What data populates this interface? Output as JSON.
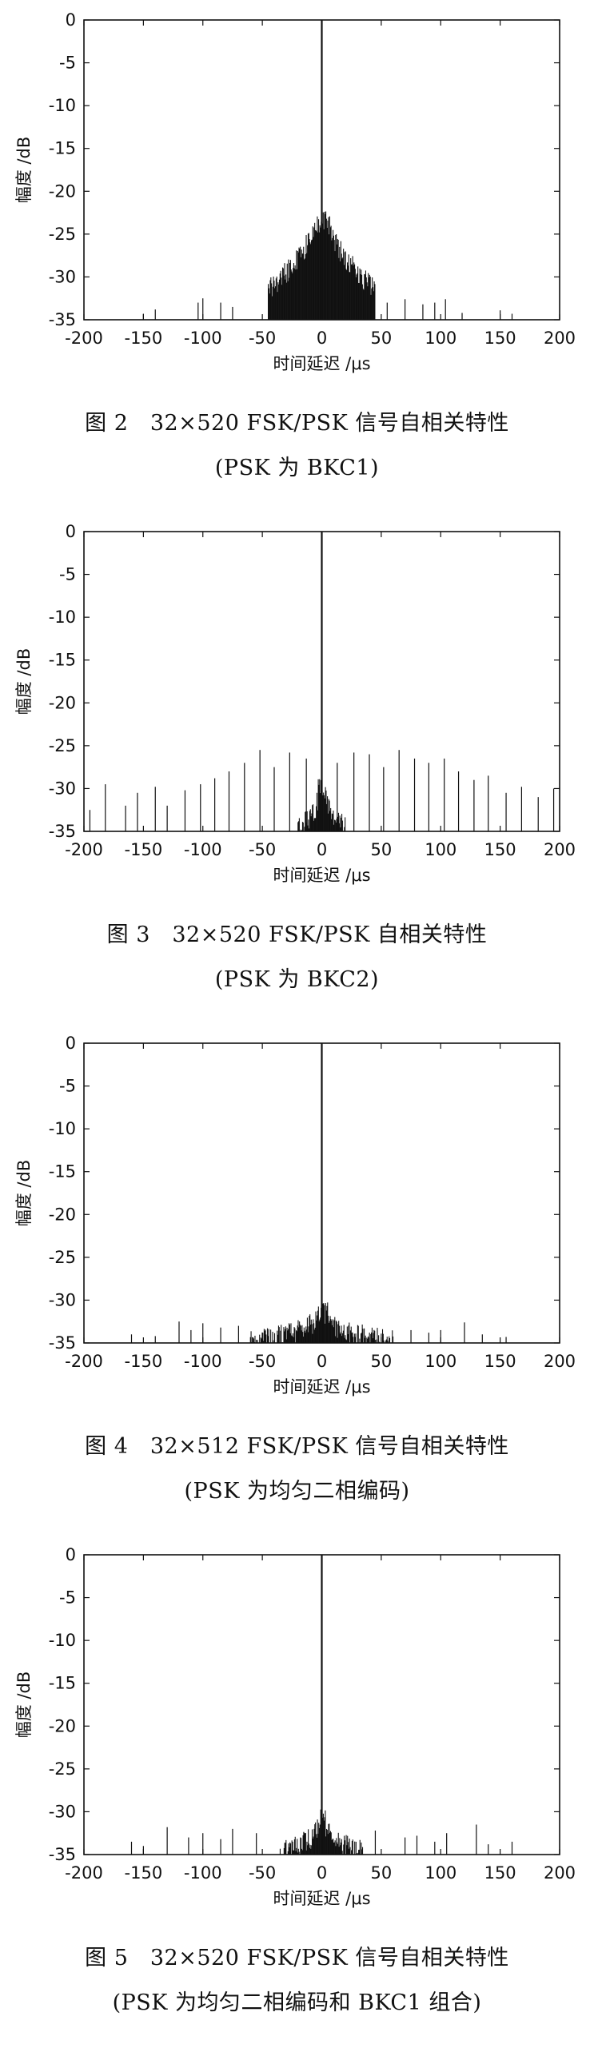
{
  "colors": {
    "ink": "#111111",
    "background": "#ffffff"
  },
  "chart_data": [
    {
      "type": "bar",
      "title": "",
      "xlabel": "时间延迟 /μs",
      "ylabel": "幅度 /dB",
      "xlim": [
        -200,
        200
      ],
      "ylim": [
        -35,
        0
      ],
      "xticks": [
        "-200",
        "-150",
        "-100",
        "-50",
        "0",
        "50",
        "100",
        "150",
        "200"
      ],
      "yticks": [
        "0",
        "-5",
        "-10",
        "-15",
        "-20",
        "-25",
        "-30",
        "-35"
      ],
      "grid": false,
      "caption_line1": "图 2　32×520 FSK/PSK 信号自相关特性",
      "caption_line2": "(PSK 为 BKC1)",
      "peak": {
        "x": 0,
        "y": 0
      },
      "profile": "mound",
      "envelope": {
        "center_level": -23,
        "inner_halfwidth": 6,
        "halfwidth": 45,
        "edge_level": -31
      },
      "sidelobes": [
        {
          "x": -150,
          "y": -34.3
        },
        {
          "x": -140,
          "y": -33.8
        },
        {
          "x": -104,
          "y": -33.0
        },
        {
          "x": -100,
          "y": -32.5
        },
        {
          "x": -85,
          "y": -33.0
        },
        {
          "x": -75,
          "y": -33.5
        },
        {
          "x": 55,
          "y": -33.0
        },
        {
          "x": 70,
          "y": -32.6
        },
        {
          "x": 85,
          "y": -33.2
        },
        {
          "x": 95,
          "y": -33.0
        },
        {
          "x": 104,
          "y": -32.6
        },
        {
          "x": 118,
          "y": -34.2
        },
        {
          "x": 150,
          "y": -33.9
        },
        {
          "x": 160,
          "y": -34.3
        }
      ]
    },
    {
      "type": "bar",
      "title": "",
      "xlabel": "时间延迟 /μs",
      "ylabel": "幅度 /dB",
      "xlim": [
        -200,
        200
      ],
      "ylim": [
        -35,
        0
      ],
      "xticks": [
        "-200",
        "-150",
        "-100",
        "-50",
        "0",
        "50",
        "100",
        "150",
        "200"
      ],
      "yticks": [
        "0",
        "-5",
        "-10",
        "-15",
        "-20",
        "-25",
        "-30",
        "-35"
      ],
      "grid": false,
      "caption_line1": "图 3　32×520 FSK/PSK 自相关特性",
      "caption_line2": "(PSK 为 BKC2)",
      "peak": {
        "x": 0,
        "y": 0
      },
      "profile": "flat",
      "envelope": {
        "center_level": -29.5,
        "inner_halfwidth": 3,
        "halfwidth": 20,
        "edge_level": -34
      },
      "sidelobes": [
        {
          "x": -195,
          "y": -32.5
        },
        {
          "x": -182,
          "y": -29.5
        },
        {
          "x": -165,
          "y": -32.0
        },
        {
          "x": -155,
          "y": -30.5
        },
        {
          "x": -140,
          "y": -29.8
        },
        {
          "x": -130,
          "y": -32.0
        },
        {
          "x": -115,
          "y": -30.2
        },
        {
          "x": -102,
          "y": -29.5
        },
        {
          "x": -90,
          "y": -28.8
        },
        {
          "x": -78,
          "y": -28.0
        },
        {
          "x": -65,
          "y": -27.0
        },
        {
          "x": -52,
          "y": -25.5
        },
        {
          "x": -40,
          "y": -27.5
        },
        {
          "x": -27,
          "y": -25.8
        },
        {
          "x": -13,
          "y": -26.5
        },
        {
          "x": 13,
          "y": -27.0
        },
        {
          "x": 27,
          "y": -25.8
        },
        {
          "x": 40,
          "y": -26.0
        },
        {
          "x": 52,
          "y": -27.5
        },
        {
          "x": 65,
          "y": -25.5
        },
        {
          "x": 78,
          "y": -26.5
        },
        {
          "x": 90,
          "y": -27.0
        },
        {
          "x": 103,
          "y": -26.5
        },
        {
          "x": 115,
          "y": -28.0
        },
        {
          "x": 128,
          "y": -29.0
        },
        {
          "x": 140,
          "y": -28.5
        },
        {
          "x": 155,
          "y": -30.5
        },
        {
          "x": 168,
          "y": -29.8
        },
        {
          "x": 182,
          "y": -31.0
        },
        {
          "x": 195,
          "y": -30.0
        }
      ]
    },
    {
      "type": "bar",
      "title": "",
      "xlabel": "时间延迟 /μs",
      "ylabel": "幅度 /dB",
      "xlim": [
        -200,
        200
      ],
      "ylim": [
        -35,
        0
      ],
      "xticks": [
        "-200",
        "-150",
        "-100",
        "-50",
        "0",
        "50",
        "100",
        "150",
        "200"
      ],
      "yticks": [
        "0",
        "-5",
        "-10",
        "-15",
        "-20",
        "-25",
        "-30",
        "-35"
      ],
      "grid": false,
      "caption_line1": "图 4　32×512 FSK/PSK 信号自相关特性",
      "caption_line2": "(PSK 为均匀二相编码)",
      "peak": {
        "x": 0,
        "y": 0
      },
      "profile": "flat",
      "envelope": {
        "center_level": -31,
        "inner_halfwidth": 5,
        "halfwidth": 60,
        "edge_level": -34.3
      },
      "sidelobes": [
        {
          "x": -160,
          "y": -34.0
        },
        {
          "x": -140,
          "y": -34.2
        },
        {
          "x": -120,
          "y": -32.5
        },
        {
          "x": -110,
          "y": -33.5
        },
        {
          "x": -100,
          "y": -32.7
        },
        {
          "x": -85,
          "y": -33.2
        },
        {
          "x": -70,
          "y": -33.0
        },
        {
          "x": 75,
          "y": -33.5
        },
        {
          "x": 90,
          "y": -33.8
        },
        {
          "x": 100,
          "y": -33.5
        },
        {
          "x": 120,
          "y": -32.6
        },
        {
          "x": 135,
          "y": -34.0
        },
        {
          "x": 155,
          "y": -34.3
        }
      ]
    },
    {
      "type": "bar",
      "title": "",
      "xlabel": "时间延迟 /μs",
      "ylabel": "幅度 /dB",
      "xlim": [
        -200,
        200
      ],
      "ylim": [
        -35,
        0
      ],
      "xticks": [
        "-200",
        "-150",
        "-100",
        "-50",
        "0",
        "50",
        "100",
        "150",
        "200"
      ],
      "yticks": [
        "0",
        "-5",
        "-10",
        "-15",
        "-20",
        "-25",
        "-30",
        "-35"
      ],
      "grid": false,
      "caption_line1": "图 5　32×520 FSK/PSK 信号自相关特性",
      "caption_line2": "(PSK 为均匀二相编码和 BKC1 组合)",
      "peak": {
        "x": 0,
        "y": 0
      },
      "profile": "flat",
      "envelope": {
        "center_level": -30.5,
        "inner_halfwidth": 3,
        "halfwidth": 35,
        "edge_level": -34.2
      },
      "sidelobes": [
        {
          "x": -160,
          "y": -33.5
        },
        {
          "x": -150,
          "y": -34.0
        },
        {
          "x": -130,
          "y": -31.8
        },
        {
          "x": -112,
          "y": -33.0
        },
        {
          "x": -100,
          "y": -32.5
        },
        {
          "x": -85,
          "y": -33.2
        },
        {
          "x": -75,
          "y": -32.0
        },
        {
          "x": -55,
          "y": -32.5
        },
        {
          "x": 45,
          "y": -32.2
        },
        {
          "x": 70,
          "y": -33.0
        },
        {
          "x": 80,
          "y": -32.8
        },
        {
          "x": 95,
          "y": -33.5
        },
        {
          "x": 105,
          "y": -32.5
        },
        {
          "x": 130,
          "y": -31.5
        },
        {
          "x": 140,
          "y": -33.8
        },
        {
          "x": 160,
          "y": -33.5
        }
      ]
    }
  ]
}
